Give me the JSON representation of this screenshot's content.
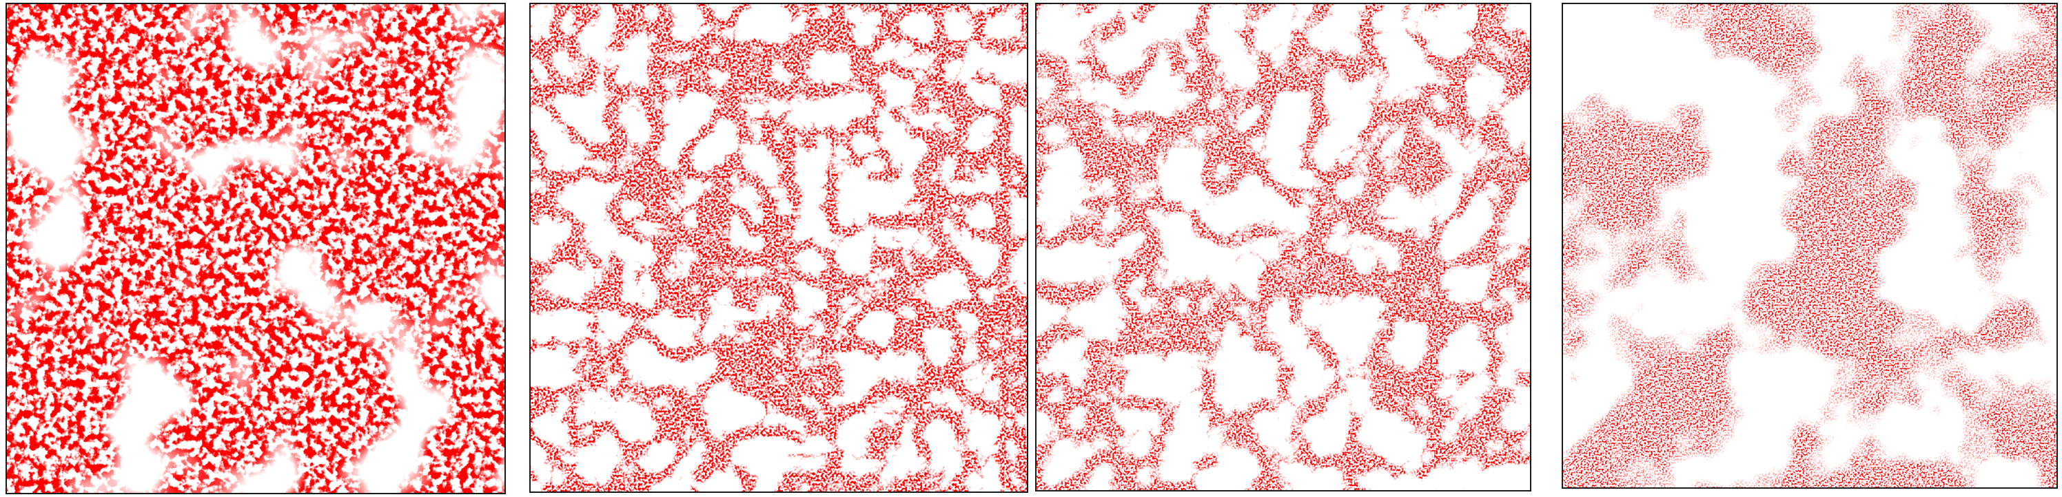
{
  "figure": {
    "point_color": "#ff0000",
    "background_color": "#ffffff",
    "frame_color": "#1a1a1a",
    "panels": [
      {
        "id": "panel-1",
        "name": "scatter-panel-1",
        "texture": "fine-dense",
        "density": 0.78
      },
      {
        "id": "panel-2",
        "name": "scatter-panel-2",
        "texture": "filamentary",
        "density": 0.58
      },
      {
        "id": "panel-3",
        "name": "scatter-panel-3",
        "texture": "filamentary-coarse",
        "density": 0.52
      },
      {
        "id": "panel-4",
        "name": "scatter-panel-4",
        "texture": "diffuse-coarse",
        "density": 0.5
      }
    ]
  }
}
